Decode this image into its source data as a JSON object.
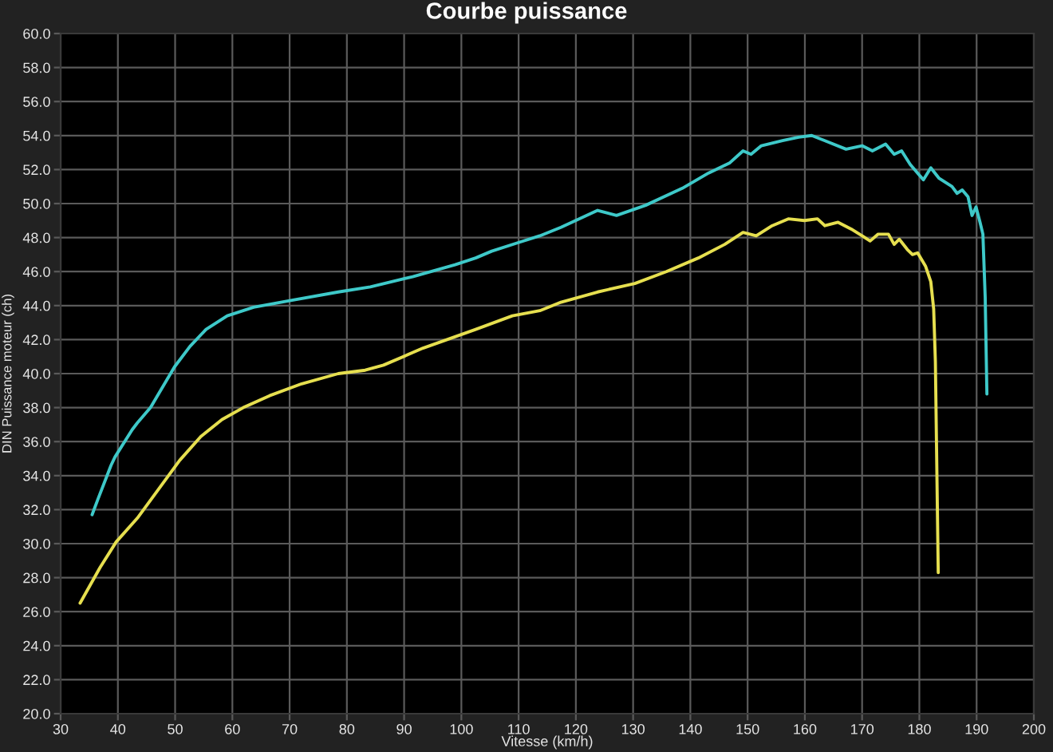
{
  "chart_data": {
    "type": "line",
    "title": "Courbe puissance",
    "xlabel": "Vitesse (km/h)",
    "ylabel": "DIN Puissance moteur (ch)",
    "xlim": [
      30,
      200
    ],
    "xticks": [
      30,
      40,
      50,
      60,
      70,
      80,
      90,
      100,
      110,
      120,
      130,
      140,
      150,
      160,
      170,
      180,
      190,
      200
    ],
    "ylim": [
      20,
      60
    ],
    "yticks": [
      {
        "value": 20,
        "label": "20.0"
      },
      {
        "value": 22,
        "label": "22.0"
      },
      {
        "value": 24,
        "label": "24.0"
      },
      {
        "value": 26,
        "label": "26.0"
      },
      {
        "value": 28,
        "label": "28.0"
      },
      {
        "value": 30,
        "label": "30.0"
      },
      {
        "value": 32,
        "label": "32.0"
      },
      {
        "value": 34,
        "label": "34.0"
      },
      {
        "value": 36,
        "label": "36.0"
      },
      {
        "value": 38,
        "label": "38.0"
      },
      {
        "value": 40,
        "label": "40.0"
      },
      {
        "value": 42,
        "label": "42.0"
      },
      {
        "value": 44,
        "label": "44.0"
      },
      {
        "value": 46,
        "label": "46.0"
      },
      {
        "value": 48,
        "label": "48.0"
      },
      {
        "value": 50,
        "label": "50.0"
      },
      {
        "value": 52,
        "label": "52.0"
      },
      {
        "value": 54,
        "label": "54.0"
      },
      {
        "value": 56,
        "label": "56.0"
      },
      {
        "value": 58,
        "label": "58.0"
      },
      {
        "value": 60,
        "label": "60.0"
      }
    ],
    "grid": true,
    "series": [
      {
        "color": "#3ec9c9",
        "x": [
          35.5,
          36.5,
          38.8,
          39.5,
          42.5,
          43.4,
          45.7,
          47.1,
          49.9,
          52.6,
          55.4,
          59.1,
          63.7,
          70.2,
          78.5,
          84.1,
          91.5,
          98.9,
          102.5,
          105.3,
          109.9,
          113.7,
          117.4,
          123.8,
          127.1,
          132.2,
          138.6,
          143.2,
          146.9,
          149.2,
          150.6,
          152.4,
          156.1,
          158.9,
          161.2,
          163.5,
          167.2,
          170.0,
          171.8,
          174.1,
          175.6,
          176.9,
          178.4,
          180.7,
          182.0,
          183.4,
          185.7,
          186.6,
          187.5,
          188.5,
          189.2,
          189.9,
          190.6,
          191.1,
          191.5,
          191.8
        ],
        "values": [
          31.7,
          32.6,
          34.6,
          35.1,
          36.7,
          37.1,
          38.0,
          38.8,
          40.4,
          41.6,
          42.6,
          43.4,
          43.9,
          44.3,
          44.8,
          45.1,
          45.7,
          46.4,
          46.8,
          47.2,
          47.7,
          48.1,
          48.6,
          49.6,
          49.3,
          49.9,
          50.9,
          51.8,
          52.4,
          53.1,
          52.9,
          53.4,
          53.7,
          53.9,
          54.0,
          53.7,
          53.2,
          53.4,
          53.1,
          53.5,
          52.9,
          53.1,
          52.3,
          51.4,
          52.1,
          51.5,
          51.0,
          50.6,
          50.8,
          50.4,
          49.3,
          49.8,
          48.9,
          48.2,
          44.5,
          38.8
        ]
      },
      {
        "color": "#e6df4f",
        "x": [
          33.4,
          36.9,
          39.7,
          43.4,
          47.1,
          50.8,
          54.5,
          58.2,
          61.9,
          66.5,
          72.1,
          78.5,
          83.2,
          86.4,
          93.3,
          102.5,
          108.9,
          113.7,
          117.4,
          123.8,
          130.3,
          135.8,
          141.4,
          146.0,
          149.2,
          151.5,
          154.3,
          157.1,
          159.9,
          162.2,
          163.5,
          165.8,
          168.1,
          170.0,
          171.4,
          172.8,
          174.6,
          175.6,
          176.5,
          177.9,
          178.8,
          179.7,
          181.1,
          182.0,
          182.5,
          182.8,
          183.0,
          183.3
        ],
        "values": [
          26.5,
          28.6,
          30.1,
          31.5,
          33.2,
          34.9,
          36.3,
          37.3,
          38.0,
          38.7,
          39.4,
          40.0,
          40.2,
          40.5,
          41.5,
          42.6,
          43.4,
          43.7,
          44.2,
          44.8,
          45.3,
          46.0,
          46.8,
          47.6,
          48.3,
          48.1,
          48.7,
          49.1,
          49.0,
          49.1,
          48.7,
          48.9,
          48.5,
          48.1,
          47.8,
          48.2,
          48.2,
          47.6,
          47.9,
          47.3,
          47.0,
          47.1,
          46.3,
          45.4,
          43.8,
          40.7,
          35.7,
          28.3
        ]
      }
    ]
  }
}
